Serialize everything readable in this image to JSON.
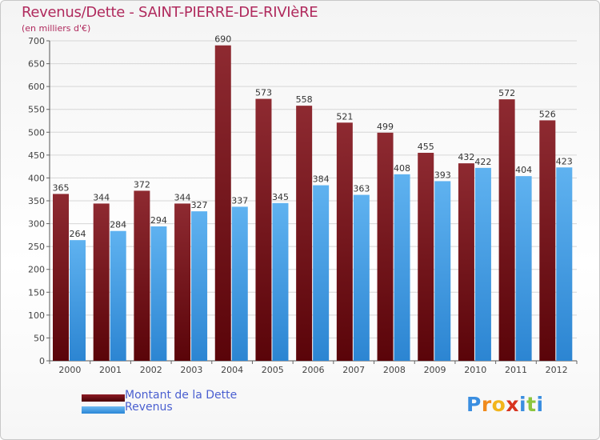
{
  "title": "Revenus/Dette - SAINT-PIERRE-DE-RIVIèRE",
  "subtitle": "(en milliers d'€)",
  "chart_data": {
    "type": "bar",
    "categories": [
      "2000",
      "2001",
      "2002",
      "2003",
      "2004",
      "2005",
      "2006",
      "2007",
      "2008",
      "2009",
      "2010",
      "2011",
      "2012"
    ],
    "series": [
      {
        "name": "Montant de la Dette",
        "color": "#6e0f16",
        "values": [
          365,
          344,
          372,
          344,
          690,
          573,
          558,
          521,
          499,
          455,
          432,
          572,
          526
        ]
      },
      {
        "name": "Revenus",
        "color": "#3e9be6",
        "values": [
          264,
          284,
          294,
          327,
          337,
          345,
          384,
          363,
          408,
          393,
          422,
          404,
          423
        ]
      }
    ],
    "ylim": [
      0,
      700
    ],
    "yticks": [
      0,
      50,
      100,
      150,
      200,
      250,
      300,
      350,
      400,
      450,
      500,
      550,
      600,
      650,
      700
    ],
    "grid": true,
    "legend_position": "bottom-left"
  },
  "legend": {
    "debt_label": "Montant de la Dette",
    "revenue_label": "Revenus"
  },
  "logo_text": "Proxiti"
}
